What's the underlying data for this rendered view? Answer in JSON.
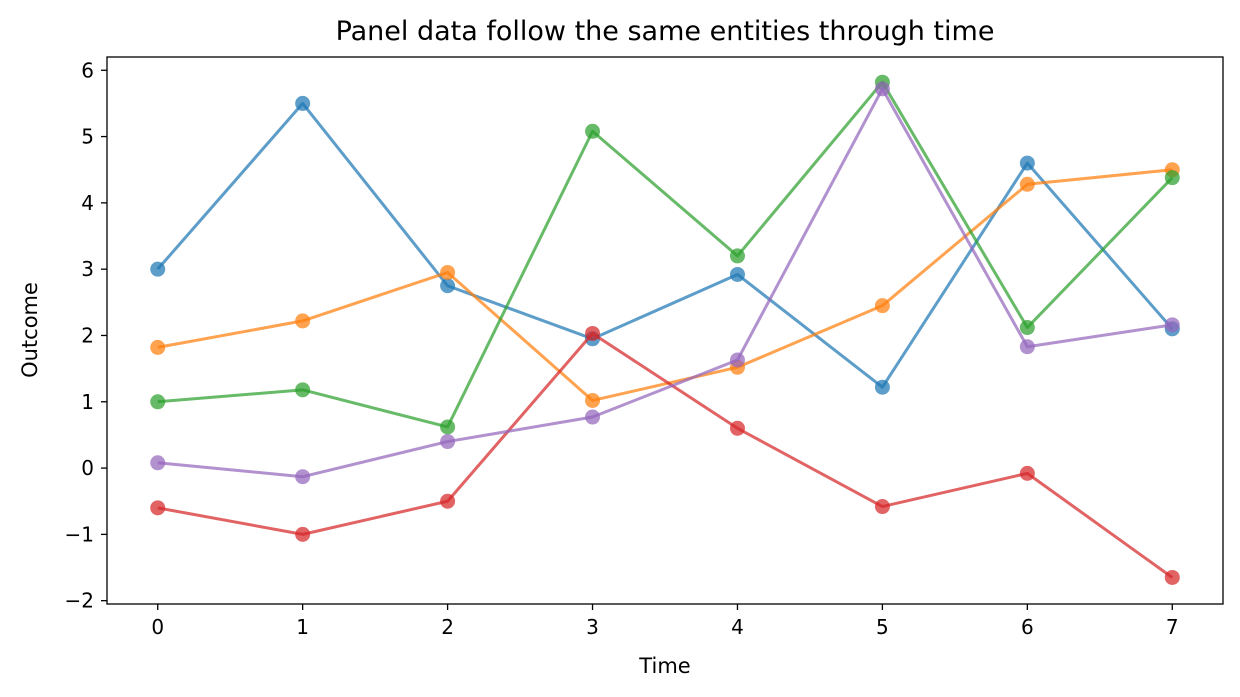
{
  "chart_data": {
    "type": "line",
    "title": "Panel data follow the same entities through time",
    "xlabel": "Time",
    "ylabel": "Outcome",
    "xlim": [
      -0.35,
      7.35
    ],
    "ylim": [
      -2.05,
      6.2
    ],
    "x": [
      0,
      1,
      2,
      3,
      4,
      5,
      6,
      7
    ],
    "xticks": [
      0,
      1,
      2,
      3,
      4,
      5,
      6,
      7
    ],
    "yticks": [
      -2,
      -1,
      0,
      1,
      2,
      3,
      4,
      5,
      6
    ],
    "xtick_labels": [
      "0",
      "1",
      "2",
      "3",
      "4",
      "5",
      "6",
      "7"
    ],
    "ytick_labels": [
      "−2",
      "−1",
      "0",
      "1",
      "2",
      "3",
      "4",
      "5",
      "6"
    ],
    "grid": false,
    "legend": false,
    "series": [
      {
        "color": "#1f77b4",
        "values": [
          3.0,
          5.5,
          2.75,
          1.95,
          2.92,
          1.22,
          4.6,
          2.1
        ]
      },
      {
        "color": "#ff7f0e",
        "values": [
          1.82,
          2.22,
          2.95,
          1.02,
          1.52,
          2.45,
          4.28,
          4.5
        ]
      },
      {
        "color": "#2ca02c",
        "values": [
          1.0,
          1.18,
          0.62,
          5.08,
          3.2,
          5.82,
          2.12,
          4.38
        ]
      },
      {
        "color": "#d62728",
        "values": [
          -0.6,
          -1.0,
          -0.5,
          2.03,
          0.6,
          -0.58,
          -0.08,
          -1.65
        ]
      },
      {
        "color": "#9467bd",
        "values": [
          0.08,
          -0.13,
          0.4,
          0.77,
          1.63,
          5.72,
          1.83,
          2.16
        ]
      }
    ]
  }
}
